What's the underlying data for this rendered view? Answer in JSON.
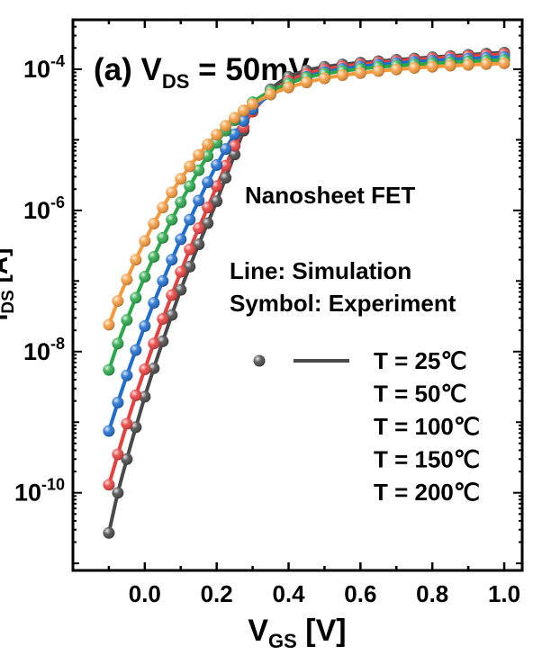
{
  "chart_data": {
    "type": "line",
    "panel_label": "(a)",
    "title_prefix": "V",
    "title_sub": "DS",
    "title_suffix": " = 50mV",
    "xlabel_main": "V",
    "xlabel_sub": "GS",
    "xlabel_unit": " [V]",
    "ylabel_main": "I",
    "ylabel_sub": "DS",
    "ylabel_unit": " [A]",
    "xlim": [
      -0.2,
      1.05
    ],
    "ylim_log10": [
      -11.1,
      -3.3
    ],
    "yscale": "log",
    "x_ticks": [
      0.0,
      0.2,
      0.4,
      0.6,
      0.8,
      1.0
    ],
    "x_tick_labels": [
      "0.0",
      "0.2",
      "0.4",
      "0.6",
      "0.8",
      "1.0"
    ],
    "y_ticks_log10": [
      -10,
      -8,
      -6,
      -4
    ],
    "y_tick_labels": [
      {
        "base": "10",
        "exp": "-10"
      },
      {
        "base": "10",
        "exp": "-8"
      },
      {
        "base": "10",
        "exp": "-6"
      },
      {
        "base": "10",
        "exp": "-4"
      }
    ],
    "grid": false,
    "annotations": {
      "device": "Nanosheet FET",
      "line_note": "Line: Simulation",
      "symbol_note": "Symbol: Experiment"
    },
    "series": [
      {
        "name": "T = 25℃",
        "color": "#4a4a4a",
        "x": [
          -0.1,
          -0.075,
          -0.05,
          -0.025,
          0.0,
          0.025,
          0.05,
          0.075,
          0.1,
          0.125,
          0.15,
          0.175,
          0.2,
          0.225,
          0.25,
          0.275,
          0.3,
          0.35,
          0.4,
          0.45,
          0.5,
          0.55,
          0.6,
          0.65,
          0.7,
          0.75,
          0.8,
          0.85,
          0.9,
          0.95,
          1.0
        ],
        "y": [
          2.7e-11,
          1e-10,
          3e-10,
          8.5e-10,
          2.3e-09,
          5.8e-09,
          1.4e-08,
          3.3e-08,
          7.5e-08,
          1.6e-07,
          3.3e-07,
          6.6e-07,
          1.35e-06,
          2.9e-06,
          6.2e-06,
          1.35e-05,
          2.7e-05,
          5.2e-05,
          7.8e-05,
          9.6e-05,
          0.000108,
          0.000117,
          0.000124,
          0.00013,
          0.000136,
          0.000142,
          0.000148,
          0.000154,
          0.00016,
          0.000166,
          0.000172
        ]
      },
      {
        "name": "T = 50℃",
        "color": "#e8403e",
        "x": [
          -0.1,
          -0.075,
          -0.05,
          -0.025,
          0.0,
          0.025,
          0.05,
          0.075,
          0.1,
          0.125,
          0.15,
          0.175,
          0.2,
          0.225,
          0.25,
          0.275,
          0.3,
          0.35,
          0.4,
          0.45,
          0.5,
          0.55,
          0.6,
          0.65,
          0.7,
          0.75,
          0.8,
          0.85,
          0.9,
          0.95,
          1.0
        ],
        "y": [
          1.3e-10,
          3.5e-10,
          9.5e-10,
          2.4e-09,
          5.6e-09,
          1.3e-08,
          2.9e-08,
          6.3e-08,
          1.35e-07,
          2.8e-07,
          5.6e-07,
          1.1e-06,
          2.2e-06,
          4.3e-06,
          8.2e-06,
          1.5e-05,
          2.5e-05,
          4.6e-05,
          6.8e-05,
          8.6e-05,
          9.9e-05,
          0.000109,
          0.000117,
          0.000124,
          0.00013,
          0.000136,
          0.000142,
          0.000148,
          0.000153,
          0.000158,
          0.000163
        ]
      },
      {
        "name": "T = 100℃",
        "color": "#1f6ecf",
        "x": [
          -0.1,
          -0.075,
          -0.05,
          -0.025,
          0.0,
          0.025,
          0.05,
          0.075,
          0.1,
          0.125,
          0.15,
          0.175,
          0.2,
          0.225,
          0.25,
          0.275,
          0.3,
          0.35,
          0.4,
          0.45,
          0.5,
          0.55,
          0.6,
          0.65,
          0.7,
          0.75,
          0.8,
          0.85,
          0.9,
          0.95,
          1.0
        ],
        "y": [
          7.5e-10,
          1.9e-09,
          4.6e-09,
          1.05e-08,
          2.3e-08,
          4.9e-08,
          1e-07,
          2e-07,
          3.9e-07,
          7.4e-07,
          1.38e-06,
          2.5e-06,
          4.4e-06,
          7.4e-06,
          1.2e-05,
          1.85e-05,
          2.7e-05,
          4.4e-05,
          6.2e-05,
          7.8e-05,
          9.1e-05,
          0.000101,
          0.000109,
          0.000116,
          0.000122,
          0.000127,
          0.000132,
          0.000137,
          0.000141,
          0.000145,
          0.000149
        ]
      },
      {
        "name": "T = 150℃",
        "color": "#2aa84a",
        "x": [
          -0.1,
          -0.075,
          -0.05,
          -0.025,
          0.0,
          0.025,
          0.05,
          0.075,
          0.1,
          0.125,
          0.15,
          0.175,
          0.2,
          0.225,
          0.25,
          0.275,
          0.3,
          0.35,
          0.4,
          0.45,
          0.5,
          0.55,
          0.6,
          0.65,
          0.7,
          0.75,
          0.8,
          0.85,
          0.9,
          0.95,
          1.0
        ],
        "y": [
          5.5e-09,
          1.3e-08,
          2.8e-08,
          5.8e-08,
          1.15e-07,
          2.2e-07,
          4.1e-07,
          7.4e-07,
          1.3e-06,
          2.2e-06,
          3.7e-06,
          5.9e-06,
          9.1e-06,
          1.35e-05,
          1.9e-05,
          2.6e-05,
          3.4e-05,
          4.9e-05,
          6.3e-05,
          7.6e-05,
          8.6e-05,
          9.4e-05,
          0.000101,
          0.000107,
          0.000112,
          0.000117,
          0.000121,
          0.000125,
          0.000129,
          0.000132,
          0.000135
        ]
      },
      {
        "name": "T = 200℃",
        "color": "#f59a3c",
        "x": [
          -0.1,
          -0.075,
          -0.05,
          -0.025,
          0.0,
          0.025,
          0.05,
          0.075,
          0.1,
          0.125,
          0.15,
          0.175,
          0.2,
          0.225,
          0.25,
          0.275,
          0.3,
          0.35,
          0.4,
          0.45,
          0.5,
          0.55,
          0.6,
          0.65,
          0.7,
          0.75,
          0.8,
          0.85,
          0.9,
          0.95,
          1.0
        ],
        "y": [
          2.4e-08,
          5.2e-08,
          1.05e-07,
          2e-07,
          3.7e-07,
          6.5e-07,
          1.1e-06,
          1.8e-06,
          2.8e-06,
          4.2e-06,
          6.1e-06,
          8.6e-06,
          1.18e-05,
          1.58e-05,
          2.05e-05,
          2.6e-05,
          3.2e-05,
          4.4e-05,
          5.5e-05,
          6.5e-05,
          7.4e-05,
          8.2e-05,
          8.8e-05,
          9.4e-05,
          9.9e-05,
          0.000104,
          0.000108,
          0.000112,
          0.000115,
          0.000118,
          0.000121
        ]
      }
    ]
  }
}
